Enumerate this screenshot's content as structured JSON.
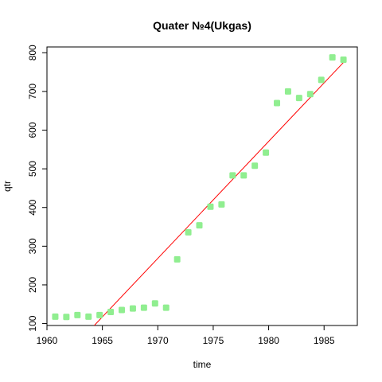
{
  "chart_data": {
    "type": "scatter",
    "title": "Quater №4(Ukgas)",
    "xlabel": "time",
    "ylabel": "qtr",
    "xlim": [
      1960,
      1988
    ],
    "ylim": [
      95,
      815
    ],
    "x_ticks": [
      1960,
      1965,
      1970,
      1975,
      1980,
      1985
    ],
    "y_ticks": [
      100,
      200,
      300,
      400,
      500,
      600,
      700,
      800
    ],
    "point_color": "#90EE90",
    "line_color": "#FF0000",
    "grid": false,
    "series": [
      {
        "x": [
          1960.75,
          1961.75,
          1962.75,
          1963.75,
          1964.75,
          1965.75,
          1966.75,
          1967.75,
          1968.75,
          1969.75,
          1970.75,
          1971.75,
          1972.75,
          1973.75,
          1974.75,
          1975.75,
          1976.75,
          1977.75,
          1978.75,
          1979.75,
          1980.75,
          1981.75,
          1982.75,
          1983.75,
          1984.75,
          1985.75,
          1986.75
        ],
        "y": [
          118,
          117,
          122,
          118,
          122,
          130,
          135,
          139,
          141,
          152,
          141,
          266,
          336,
          354,
          402,
          408,
          483,
          483,
          508,
          542,
          670,
          700,
          683,
          693,
          730,
          788,
          782
        ]
      }
    ],
    "trend_line": {
      "x": [
        1964.1,
        1986.75
      ],
      "y": [
        90,
        775
      ]
    }
  }
}
